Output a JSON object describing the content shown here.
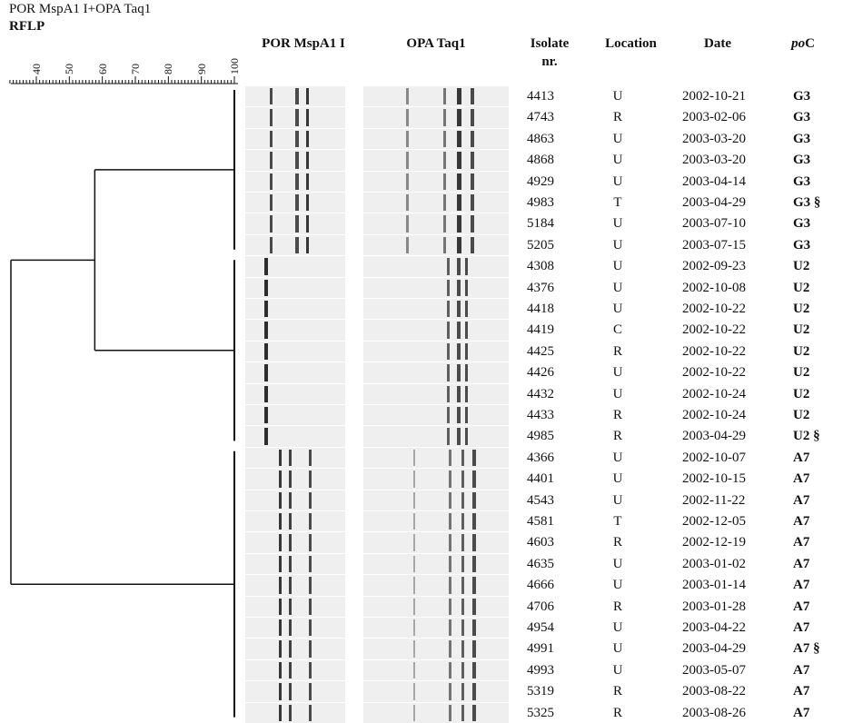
{
  "title_line1": "POR MspA1 I+OPA Taq1",
  "title_line2": "RFLP",
  "scale_ticks": [
    "40",
    "50",
    "60",
    "70",
    "80",
    "90",
    "100"
  ],
  "headers": {
    "por": "POR MspA1 I",
    "opa": "OPA Taq1",
    "isolate_line1": "Isolate",
    "isolate_line2": "nr.",
    "location": "Location",
    "date": "Date",
    "poc_italic": "po",
    "poc_rest": "C"
  },
  "rows": [
    {
      "isolate": "4413",
      "location": "U",
      "date": "2002-10-21",
      "poc": "G3"
    },
    {
      "isolate": "4743",
      "location": "R",
      "date": "2003-02-06",
      "poc": "G3"
    },
    {
      "isolate": "4863",
      "location": "U",
      "date": "2003-03-20",
      "poc": "G3"
    },
    {
      "isolate": "4868",
      "location": "U",
      "date": "2003-03-20",
      "poc": "G3"
    },
    {
      "isolate": "4929",
      "location": "U",
      "date": "2003-04-14",
      "poc": "G3"
    },
    {
      "isolate": "4983",
      "location": "T",
      "date": "2003-04-29",
      "poc": "G3 §"
    },
    {
      "isolate": "5184",
      "location": "U",
      "date": "2003-07-10",
      "poc": "G3"
    },
    {
      "isolate": "5205",
      "location": "U",
      "date": "2003-07-15",
      "poc": "G3"
    },
    {
      "isolate": "4308",
      "location": "U",
      "date": "2002-09-23",
      "poc": "U2"
    },
    {
      "isolate": "4376",
      "location": "U",
      "date": "2002-10-08",
      "poc": "U2"
    },
    {
      "isolate": "4418",
      "location": "U",
      "date": "2002-10-22",
      "poc": "U2"
    },
    {
      "isolate": "4419",
      "location": "C",
      "date": "2002-10-22",
      "poc": "U2"
    },
    {
      "isolate": "4425",
      "location": "R",
      "date": "2002-10-22",
      "poc": "U2"
    },
    {
      "isolate": "4426",
      "location": "U",
      "date": "2002-10-22",
      "poc": "U2"
    },
    {
      "isolate": "4432",
      "location": "U",
      "date": "2002-10-24",
      "poc": "U2"
    },
    {
      "isolate": "4433",
      "location": "R",
      "date": "2002-10-24",
      "poc": "U2"
    },
    {
      "isolate": "4985",
      "location": "R",
      "date": "2003-04-29",
      "poc": "U2 §"
    },
    {
      "isolate": "4366",
      "location": "U",
      "date": "2002-10-07",
      "poc": "A7"
    },
    {
      "isolate": "4401",
      "location": "U",
      "date": "2002-10-15",
      "poc": "A7"
    },
    {
      "isolate": "4543",
      "location": "U",
      "date": "2002-11-22",
      "poc": "A7"
    },
    {
      "isolate": "4581",
      "location": "T",
      "date": "2002-12-05",
      "poc": "A7"
    },
    {
      "isolate": "4603",
      "location": "R",
      "date": "2002-12-19",
      "poc": "A7"
    },
    {
      "isolate": "4635",
      "location": "U",
      "date": "2003-01-02",
      "poc": "A7"
    },
    {
      "isolate": "4666",
      "location": "U",
      "date": "2003-01-14",
      "poc": "A7"
    },
    {
      "isolate": "4706",
      "location": "R",
      "date": "2003-01-28",
      "poc": "A7"
    },
    {
      "isolate": "4954",
      "location": "U",
      "date": "2003-04-22",
      "poc": "A7"
    },
    {
      "isolate": "4991",
      "location": "U",
      "date": "2003-04-29",
      "poc": "A7 §"
    },
    {
      "isolate": "4993",
      "location": "U",
      "date": "2003-05-07",
      "poc": "A7"
    },
    {
      "isolate": "5319",
      "location": "R",
      "date": "2003-08-22",
      "poc": "A7"
    },
    {
      "isolate": "5325",
      "location": "R",
      "date": "2003-08-26",
      "poc": "A7"
    }
  ],
  "dendrogram": {
    "scale_min": 40,
    "scale_max": 100,
    "clusters": [
      {
        "poc": "G3",
        "row_start": 0,
        "row_end": 7
      },
      {
        "poc": "U2",
        "row_start": 8,
        "row_end": 16
      },
      {
        "poc": "A7",
        "row_start": 17,
        "row_end": 29
      }
    ],
    "merge_G3_U2_similarity": 50,
    "merge_root_similarity": 40
  }
}
